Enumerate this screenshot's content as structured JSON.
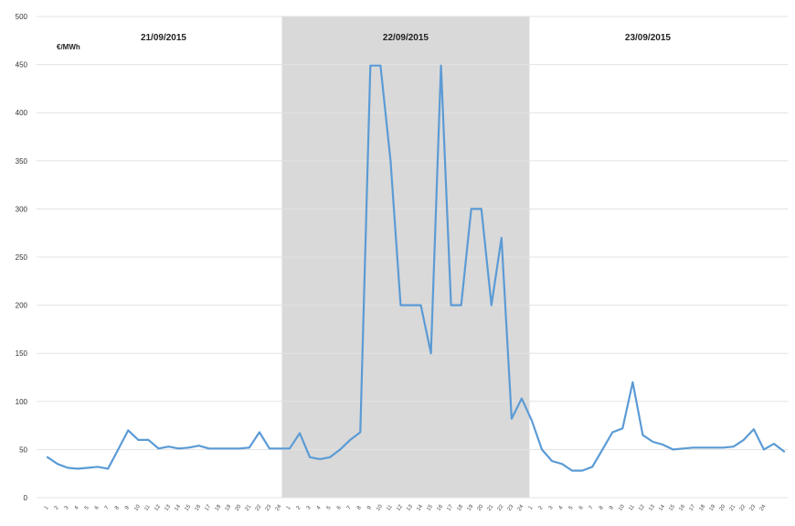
{
  "chart_data": {
    "type": "line",
    "unit_label": "€/MWh",
    "ylim": [
      0,
      500
    ],
    "y_ticks": [
      0,
      50,
      100,
      150,
      200,
      250,
      300,
      350,
      400,
      450,
      500
    ],
    "grid": "horizontal",
    "line_color": "#5b9bd5",
    "shade_color": "#d9d9d9",
    "highlighted_day": "22/09/2015",
    "days": [
      {
        "label": "21/09/2015",
        "hours": [
          1,
          2,
          3,
          4,
          5,
          6,
          7,
          8,
          9,
          10,
          11,
          12,
          13,
          14,
          15,
          16,
          17,
          18,
          19,
          20,
          21,
          22,
          23,
          24
        ]
      },
      {
        "label": "22/09/2015",
        "hours": [
          1,
          2,
          3,
          4,
          5,
          6,
          7,
          8,
          9,
          10,
          11,
          12,
          13,
          14,
          15,
          16,
          17,
          18,
          19,
          20,
          21,
          22,
          23,
          24
        ]
      },
      {
        "label": "23/09/2015",
        "hours": [
          1,
          2,
          3,
          4,
          5,
          6,
          7,
          8,
          9,
          10,
          11,
          12,
          13,
          14,
          15,
          16,
          17,
          18,
          19,
          20,
          21,
          22,
          23,
          24
        ]
      }
    ],
    "series": [
      {
        "values": [
          42,
          35,
          31,
          30,
          31,
          32,
          30,
          50,
          70,
          60,
          60,
          51,
          53,
          51,
          52,
          54,
          51,
          51,
          51,
          51,
          52,
          68,
          51,
          51,
          51,
          67,
          42,
          40,
          42,
          50,
          60,
          68,
          449,
          449,
          350,
          200,
          200,
          200,
          150,
          449,
          200,
          200,
          300,
          300,
          200,
          270,
          82,
          103,
          80,
          50,
          38,
          35,
          28,
          28,
          32,
          50,
          68,
          72,
          120,
          65,
          58,
          55,
          50,
          51,
          52,
          52,
          52,
          52,
          53,
          60,
          71,
          50,
          56,
          48
        ]
      }
    ]
  }
}
